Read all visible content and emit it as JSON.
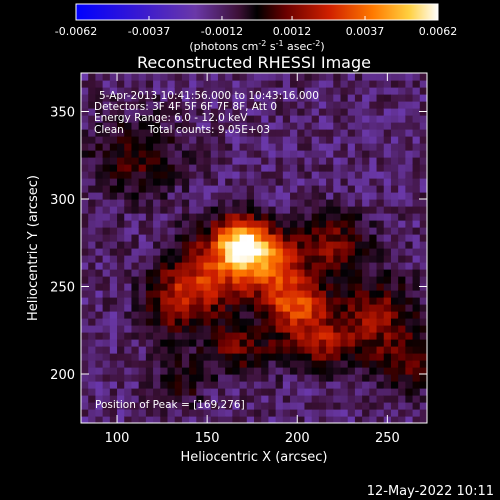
{
  "chart_data": {
    "type": "heatmap",
    "title": "Reconstructed RHESSI Image",
    "xlabel": "Heliocentric X (arcsec)",
    "ylabel": "Heliocentric Y (arcsec)",
    "xlim": [
      80,
      272
    ],
    "ylim": [
      172,
      372
    ],
    "x_ticks": [
      100,
      150,
      200,
      250
    ],
    "y_ticks": [
      200,
      250,
      300,
      350
    ],
    "colorbar": {
      "range": [
        -0.0062,
        0.0062
      ],
      "ticks": [
        {
          "value": -0.0062,
          "label": "-0.0062"
        },
        {
          "value": -0.0037,
          "label": "-0.0037"
        },
        {
          "value": -0.0012,
          "label": "-0.0012"
        },
        {
          "value": 0.0012,
          "label": "0.0012"
        },
        {
          "value": 0.0037,
          "label": "0.0037"
        },
        {
          "value": 0.0062,
          "label": "0.0062"
        }
      ],
      "unit_parts": {
        "open": "(photons cm",
        "exp1": "-2",
        "mid1": " s",
        "exp2": "-1",
        "mid2": " asec",
        "exp3": "-2",
        "close": ")"
      }
    },
    "annotations": {
      "time_range": "5-Apr-2013 10:41:56.000 to 10:43:16.000",
      "detectors": "Detectors: 3F 4F 5F 6F 7F 8F, Att 0",
      "energy_range": "Energy Range: 6.0 - 12.0 keV",
      "method": "Clean",
      "total_counts": "Total counts: 9.05E+03",
      "peak_position": "Position of Peak = [169,276]"
    },
    "peak": {
      "x": 169,
      "y": 276
    },
    "sources": [
      {
        "x": 169,
        "y": 276,
        "amp": 0.0058,
        "sx": 11,
        "sy": 10
      },
      {
        "x": 183,
        "y": 262,
        "amp": 0.0042,
        "sx": 14,
        "sy": 12
      },
      {
        "x": 200,
        "y": 240,
        "amp": 0.004,
        "sx": 12,
        "sy": 10
      },
      {
        "x": 150,
        "y": 255,
        "amp": 0.003,
        "sx": 14,
        "sy": 16
      },
      {
        "x": 213,
        "y": 218,
        "amp": 0.0026,
        "sx": 18,
        "sy": 10
      },
      {
        "x": 245,
        "y": 235,
        "amp": 0.0022,
        "sx": 15,
        "sy": 14
      },
      {
        "x": 130,
        "y": 242,
        "amp": 0.002,
        "sx": 12,
        "sy": 14
      },
      {
        "x": 220,
        "y": 275,
        "amp": 0.0022,
        "sx": 14,
        "sy": 12
      },
      {
        "x": 165,
        "y": 215,
        "amp": 0.0018,
        "sx": 12,
        "sy": 10
      },
      {
        "x": 110,
        "y": 325,
        "amp": 0.0015,
        "sx": 18,
        "sy": 16
      },
      {
        "x": 260,
        "y": 205,
        "amp": 0.0016,
        "sx": 12,
        "sy": 12
      },
      {
        "x": 135,
        "y": 195,
        "amp": 0.0012,
        "sx": 10,
        "sy": 10
      }
    ],
    "background": -0.0014,
    "footer_date": "12-May-2022 10:11"
  }
}
